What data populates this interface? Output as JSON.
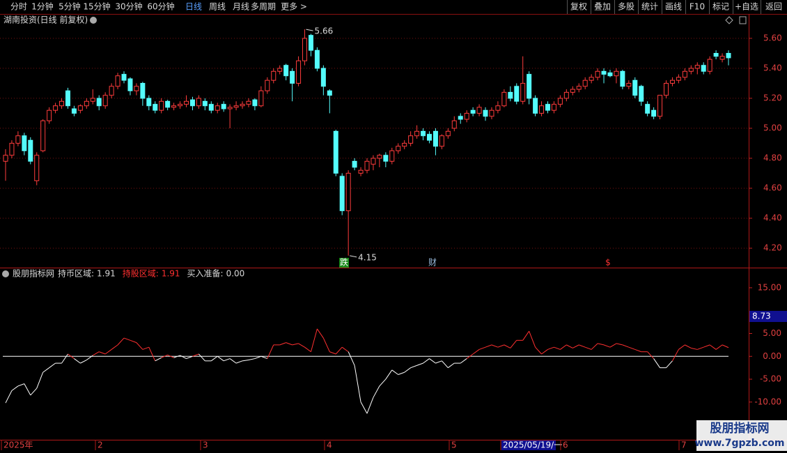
{
  "toolbar": {
    "periods": [
      "分时",
      "1分钟",
      "5分钟",
      "15分钟",
      "30分钟",
      "60分钟",
      "日线",
      "周线",
      "月线",
      "多周期",
      "更多 >"
    ],
    "selected": 6,
    "buttons": [
      "复权",
      "叠加",
      "多股",
      "统计",
      "画线",
      "F10",
      "标记",
      "+自选",
      "返回"
    ]
  },
  "chart_data": [
    {
      "type": "candlestick",
      "title": "湖南投资(日线 前复权)",
      "up_color": "#ff3c3c",
      "down_color": "#54fcfc",
      "grid": true,
      "ylim": [
        4.075,
        5.758
      ],
      "yticks": [
        {
          "value": 5.6,
          "label": "5.60"
        },
        {
          "value": 5.4,
          "label": "5.40"
        },
        {
          "value": 5.2,
          "label": "5.20"
        },
        {
          "value": 5.0,
          "label": "5.00"
        },
        {
          "value": 4.8,
          "label": "4.80"
        },
        {
          "value": 4.6,
          "label": "4.60"
        },
        {
          "value": 4.4,
          "label": "4.40"
        },
        {
          "value": 4.2,
          "label": "4.20"
        }
      ],
      "high_label": 5.66,
      "low_label": 4.15,
      "markers": [
        {
          "text": "跌"
        },
        {
          "text": "财"
        },
        {
          "text": "$"
        }
      ],
      "x_labels": [
        "2025年",
        "2",
        "3",
        "4",
        "5",
        "2025/05/19/一",
        "6",
        "7"
      ],
      "candles": [
        [
          4.78,
          4.86,
          4.65,
          4.82
        ],
        [
          4.82,
          4.92,
          4.8,
          4.9
        ],
        [
          4.9,
          4.98,
          4.88,
          4.95
        ],
        [
          4.95,
          4.97,
          4.82,
          4.85
        ],
        [
          4.92,
          4.94,
          4.76,
          4.78
        ],
        [
          4.65,
          4.84,
          4.62,
          4.82
        ],
        [
          4.85,
          5.06,
          4.84,
          5.05
        ],
        [
          5.05,
          5.14,
          5.03,
          5.12
        ],
        [
          5.12,
          5.17,
          5.1,
          5.15
        ],
        [
          5.15,
          5.2,
          5.13,
          5.18
        ],
        [
          5.25,
          5.27,
          5.13,
          5.15
        ],
        [
          5.13,
          5.15,
          5.08,
          5.1
        ],
        [
          5.12,
          5.16,
          5.1,
          5.15
        ],
        [
          5.15,
          5.2,
          5.13,
          5.18
        ],
        [
          5.18,
          5.26,
          5.16,
          5.2
        ],
        [
          5.2,
          5.22,
          5.12,
          5.15
        ],
        [
          5.15,
          5.24,
          5.13,
          5.22
        ],
        [
          5.22,
          5.3,
          5.2,
          5.28
        ],
        [
          5.28,
          5.37,
          5.26,
          5.35
        ],
        [
          5.36,
          5.38,
          5.3,
          5.32
        ],
        [
          5.33,
          5.34,
          5.22,
          5.25
        ],
        [
          5.25,
          5.3,
          5.22,
          5.28
        ],
        [
          5.3,
          5.31,
          5.15,
          5.2
        ],
        [
          5.2,
          5.22,
          5.12,
          5.15
        ],
        [
          5.16,
          5.18,
          5.1,
          5.12
        ],
        [
          5.12,
          5.2,
          5.1,
          5.18
        ],
        [
          5.18,
          5.19,
          5.12,
          5.14
        ],
        [
          5.14,
          5.17,
          5.12,
          5.15
        ],
        [
          5.15,
          5.18,
          5.13,
          5.16
        ],
        [
          5.16,
          5.22,
          5.14,
          5.18
        ],
        [
          5.19,
          5.21,
          5.12,
          5.15
        ],
        [
          5.15,
          5.22,
          5.13,
          5.2
        ],
        [
          5.18,
          5.2,
          5.12,
          5.15
        ],
        [
          5.16,
          5.18,
          5.1,
          5.12
        ],
        [
          5.12,
          5.17,
          5.1,
          5.15
        ],
        [
          5.16,
          5.18,
          5.11,
          5.13
        ],
        [
          5.13,
          5.16,
          5.0,
          5.14
        ],
        [
          5.14,
          5.18,
          5.12,
          5.15
        ],
        [
          5.15,
          5.18,
          5.13,
          5.16
        ],
        [
          5.16,
          5.2,
          5.14,
          5.18
        ],
        [
          5.19,
          5.2,
          5.12,
          5.15
        ],
        [
          5.15,
          5.28,
          5.14,
          5.25
        ],
        [
          5.25,
          5.34,
          5.23,
          5.32
        ],
        [
          5.32,
          5.4,
          5.3,
          5.38
        ],
        [
          5.38,
          5.42,
          5.36,
          5.4
        ],
        [
          5.42,
          5.43,
          5.32,
          5.35
        ],
        [
          5.38,
          5.4,
          5.18,
          5.3
        ],
        [
          5.3,
          5.48,
          5.28,
          5.45
        ],
        [
          5.45,
          5.66,
          5.42,
          5.6
        ],
        [
          5.62,
          5.63,
          5.48,
          5.52
        ],
        [
          5.52,
          5.54,
          5.38,
          5.4
        ],
        [
          5.4,
          5.42,
          5.22,
          5.28
        ],
        [
          5.25,
          5.26,
          5.1,
          5.22
        ],
        [
          4.98,
          4.99,
          4.68,
          4.7
        ],
        [
          4.68,
          4.7,
          4.42,
          4.45
        ],
        [
          4.45,
          4.72,
          4.15,
          4.7
        ],
        [
          4.78,
          4.8,
          4.72,
          4.74
        ],
        [
          4.7,
          4.74,
          4.68,
          4.72
        ],
        [
          4.72,
          4.8,
          4.7,
          4.78
        ],
        [
          4.76,
          4.82,
          4.72,
          4.8
        ],
        [
          4.8,
          4.83,
          4.74,
          4.82
        ],
        [
          4.82,
          4.84,
          4.74,
          4.78
        ],
        [
          4.78,
          4.87,
          4.76,
          4.85
        ],
        [
          4.85,
          4.9,
          4.83,
          4.88
        ],
        [
          4.88,
          4.92,
          4.86,
          4.9
        ],
        [
          4.9,
          4.98,
          4.88,
          4.95
        ],
        [
          4.95,
          5.02,
          4.93,
          4.98
        ],
        [
          4.98,
          5.0,
          4.92,
          4.95
        ],
        [
          4.96,
          4.98,
          4.9,
          4.92
        ],
        [
          4.98,
          5.0,
          4.82,
          4.88
        ],
        [
          4.88,
          4.96,
          4.86,
          4.95
        ],
        [
          4.95,
          5.0,
          4.93,
          4.98
        ],
        [
          5.0,
          5.08,
          4.98,
          5.05
        ],
        [
          5.08,
          5.1,
          5.03,
          5.06
        ],
        [
          5.06,
          5.12,
          5.04,
          5.1
        ],
        [
          5.12,
          5.14,
          5.08,
          5.1
        ],
        [
          5.1,
          5.16,
          5.08,
          5.14
        ],
        [
          5.12,
          5.14,
          5.05,
          5.08
        ],
        [
          5.08,
          5.14,
          5.06,
          5.12
        ],
        [
          5.12,
          5.18,
          5.1,
          5.15
        ],
        [
          5.15,
          5.26,
          5.14,
          5.24
        ],
        [
          5.24,
          5.28,
          5.18,
          5.2
        ],
        [
          5.28,
          5.3,
          5.16,
          5.18
        ],
        [
          5.18,
          5.48,
          5.16,
          5.3
        ],
        [
          5.36,
          5.38,
          5.16,
          5.2
        ],
        [
          5.2,
          5.22,
          5.08,
          5.1
        ],
        [
          5.1,
          5.18,
          5.08,
          5.15
        ],
        [
          5.16,
          5.18,
          5.1,
          5.12
        ],
        [
          5.12,
          5.18,
          5.1,
          5.16
        ],
        [
          5.16,
          5.22,
          5.14,
          5.2
        ],
        [
          5.2,
          5.26,
          5.18,
          5.24
        ],
        [
          5.24,
          5.28,
          5.22,
          5.26
        ],
        [
          5.26,
          5.3,
          5.24,
          5.28
        ],
        [
          5.28,
          5.34,
          5.26,
          5.32
        ],
        [
          5.32,
          5.36,
          5.3,
          5.34
        ],
        [
          5.34,
          5.4,
          5.32,
          5.38
        ],
        [
          5.38,
          5.4,
          5.3,
          5.36
        ],
        [
          5.37,
          5.39,
          5.34,
          5.35
        ],
        [
          5.35,
          5.4,
          5.3,
          5.38
        ],
        [
          5.38,
          5.39,
          5.26,
          5.28
        ],
        [
          5.28,
          5.32,
          5.26,
          5.3
        ],
        [
          5.32,
          5.34,
          5.2,
          5.22
        ],
        [
          5.28,
          5.29,
          5.15,
          5.18
        ],
        [
          5.16,
          5.18,
          5.08,
          5.1
        ],
        [
          5.12,
          5.14,
          5.06,
          5.08
        ],
        [
          5.08,
          5.22,
          5.06,
          5.22
        ],
        [
          5.22,
          5.32,
          5.2,
          5.3
        ],
        [
          5.3,
          5.34,
          5.28,
          5.32
        ],
        [
          5.32,
          5.36,
          5.3,
          5.34
        ],
        [
          5.34,
          5.4,
          5.32,
          5.38
        ],
        [
          5.38,
          5.42,
          5.36,
          5.4
        ],
        [
          5.4,
          5.44,
          5.36,
          5.42
        ],
        [
          5.42,
          5.44,
          5.36,
          5.38
        ],
        [
          5.38,
          5.48,
          5.36,
          5.46
        ],
        [
          5.5,
          5.52,
          5.46,
          5.48
        ],
        [
          5.46,
          5.5,
          5.44,
          5.48
        ],
        [
          5.5,
          5.52,
          5.42,
          5.47
        ]
      ]
    },
    {
      "type": "line",
      "name": "股朋指标网",
      "pos_color": "#ff3030",
      "neg_color": "#ffffff",
      "fields": [
        {
          "label": "持币区域:",
          "value": 1.91,
          "color": "#d8d8d8"
        },
        {
          "label": "持股区域:",
          "value": 1.91,
          "color": "#ff3030"
        },
        {
          "label": "买入准备:",
          "value": {
            "value": 0,
            "label": "0.00"
          },
          "color": "#d8d8d8"
        }
      ],
      "cursor_value": 8.73,
      "ylim": [
        -18.1,
        19.1
      ],
      "yticks": [
        {
          "value": 15,
          "label": "15.00"
        },
        {
          "value": 5,
          "label": "5.00"
        },
        {
          "value": 0,
          "label": "0.00"
        },
        {
          "value": -5,
          "label": "-5.00"
        },
        {
          "value": -10,
          "label": "-10.00"
        }
      ],
      "values": [
        -10.2,
        -7.5,
        -6.5,
        -6.0,
        -8.5,
        -7.0,
        -3.5,
        -2.5,
        -1.5,
        -1.5,
        0.5,
        -0.5,
        -1.5,
        -0.8,
        0.2,
        1.0,
        0.5,
        1.5,
        2.5,
        4.0,
        3.5,
        3.0,
        1.5,
        2.0,
        -1.0,
        -0.3,
        0.3,
        -0.3,
        0.2,
        -0.5,
        0.0,
        0.5,
        -1.0,
        -1.0,
        0.0,
        -1.0,
        -0.5,
        -1.5,
        -1.0,
        -0.8,
        -0.5,
        0.0,
        -0.5,
        2.5,
        2.5,
        3.0,
        2.5,
        2.8,
        2.0,
        1.0,
        6.0,
        4.0,
        1.0,
        0.5,
        2.0,
        1.0,
        -2.0,
        -10.0,
        -12.5,
        -9.0,
        -6.5,
        -5.0,
        -3.0,
        -4.0,
        -3.5,
        -2.5,
        -2.0,
        -1.5,
        -0.5,
        -1.5,
        -1.0,
        -2.5,
        -1.5,
        -1.5,
        -0.5,
        0.5,
        1.5,
        2.0,
        2.5,
        2.0,
        2.5,
        1.8,
        3.5,
        3.5,
        5.5,
        2.0,
        0.5,
        1.5,
        2.0,
        1.5,
        2.5,
        1.8,
        2.5,
        2.0,
        1.5,
        2.8,
        2.5,
        2.0,
        2.8,
        2.5,
        2.0,
        1.5,
        1.0,
        1.0,
        -0.5,
        -2.5,
        -2.5,
        -1.0,
        1.5,
        2.5,
        1.8,
        1.5,
        2.0,
        2.5,
        1.5,
        2.5,
        1.91
      ]
    }
  ],
  "watermark": {
    "name": "股朋指标网",
    "url": "www.7gpzb.com"
  }
}
